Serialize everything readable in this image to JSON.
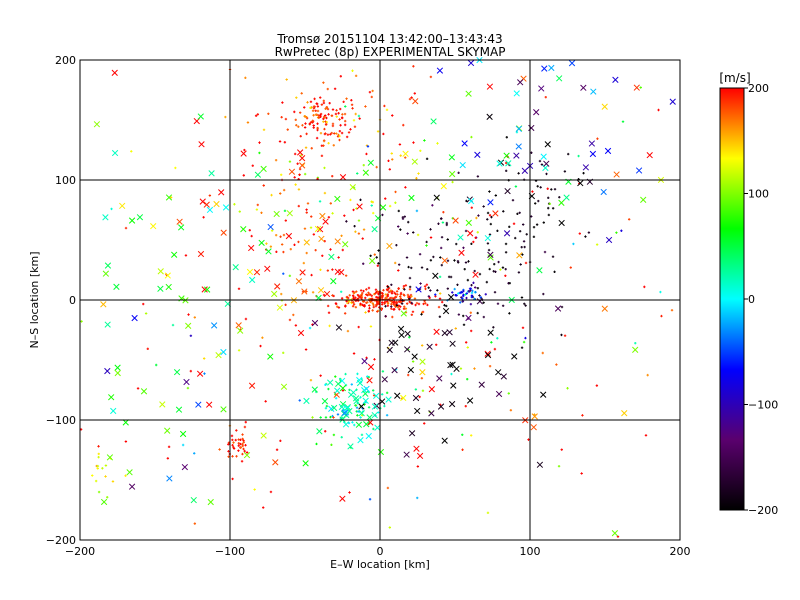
{
  "chart_data": {
    "type": "scatter",
    "title_line1": "Tromsø 20151104 13:42:00–13:43:43",
    "title_line2": "RwPretec (8p) EXPERIMENTAL SKYMAP",
    "xlabel": "E–W location [km]",
    "ylabel": "N–S location [km]",
    "xlim": [
      -200,
      200
    ],
    "ylim": [
      -200,
      200
    ],
    "xticks": [
      -200,
      -100,
      0,
      100,
      200
    ],
    "yticks": [
      -200,
      -100,
      0,
      100,
      200
    ],
    "grid": true,
    "colorbar": {
      "label": "[m/s]",
      "range": [
        -200,
        200
      ],
      "ticks": [
        200,
        100,
        0,
        -100,
        -200
      ],
      "colormap": [
        "#000000",
        "#5a006e",
        "#0000ff",
        "#00ffff",
        "#00ff00",
        "#ffff00",
        "#ff0000"
      ]
    },
    "markers": [
      "plus",
      "x"
    ],
    "clusters": [
      {
        "x": 0,
        "y": 0,
        "sx": 15,
        "sy": 5,
        "n": 260,
        "v": 195,
        "vs": 15,
        "marker": "plus"
      },
      {
        "x": -40,
        "y": 150,
        "sx": 12,
        "sy": 10,
        "n": 120,
        "v": 190,
        "vs": 20,
        "marker": "plus"
      },
      {
        "x": -30,
        "y": 90,
        "sx": 35,
        "sy": 55,
        "n": 160,
        "v": 180,
        "vs": 40,
        "marker": "plus"
      },
      {
        "x": -20,
        "y": -90,
        "sx": 15,
        "sy": 15,
        "n": 70,
        "v": 25,
        "vs": 30,
        "marker": "plus"
      },
      {
        "x": 50,
        "y": 30,
        "sx": 35,
        "sy": 30,
        "n": 140,
        "v": -185,
        "vs": 20,
        "marker": "plus"
      },
      {
        "x": 100,
        "y": 80,
        "sx": 20,
        "sy": 25,
        "n": 50,
        "v": -190,
        "vs": 10,
        "marker": "plus"
      },
      {
        "x": 58,
        "y": 5,
        "sx": 5,
        "sy": 3,
        "n": 40,
        "v": -70,
        "vs": 50,
        "marker": "plus"
      },
      {
        "x": -95,
        "y": -120,
        "sx": 5,
        "sy": 8,
        "n": 40,
        "v": 190,
        "vs": 15,
        "marker": "plus"
      },
      {
        "x": -185,
        "y": -140,
        "sx": 8,
        "sy": 10,
        "n": 15,
        "v": 130,
        "vs": 20,
        "marker": "plus"
      },
      {
        "x": 0,
        "y": 0,
        "sx": 110,
        "sy": 110,
        "n": 220,
        "v": 150,
        "vs": 90,
        "marker": "plus"
      },
      {
        "x": 0,
        "y": 0,
        "sx": 120,
        "sy": 110,
        "n": 110,
        "v": 160,
        "vs": 80,
        "marker": "x"
      },
      {
        "x": 40,
        "y": -60,
        "sx": 30,
        "sy": 40,
        "n": 50,
        "v": -180,
        "vs": 30,
        "marker": "x"
      },
      {
        "x": -20,
        "y": -90,
        "sx": 12,
        "sy": 15,
        "n": 45,
        "v": 20,
        "vs": 25,
        "marker": "x"
      },
      {
        "x": 100,
        "y": 130,
        "sx": 60,
        "sy": 50,
        "n": 70,
        "v": -110,
        "vs": 100,
        "marker": "x"
      },
      {
        "x": -150,
        "y": -20,
        "sx": 40,
        "sy": 70,
        "n": 50,
        "v": 40,
        "vs": 80,
        "marker": "x"
      },
      {
        "x": -60,
        "y": 40,
        "sx": 40,
        "sy": 40,
        "n": 45,
        "v": 130,
        "vs": 100,
        "marker": "x"
      }
    ],
    "seed": 20151104
  }
}
